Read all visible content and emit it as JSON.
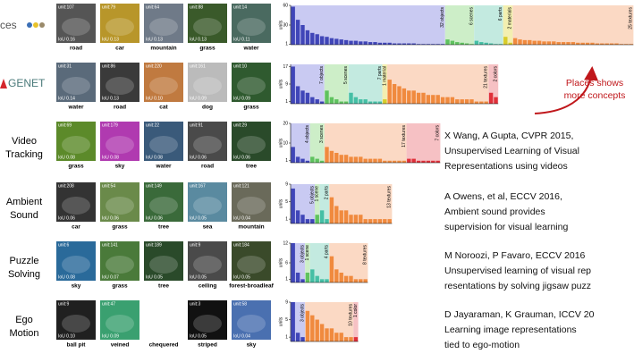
{
  "rows": [
    {
      "label": "ces",
      "images": [
        {
          "unit": "unit:107",
          "iou": "IoU 0.16",
          "label": "road"
        },
        {
          "unit": "unit:79",
          "iou": "IoU 0.13",
          "label": "car"
        },
        {
          "unit": "unit:64",
          "iou": "IoU 0.13",
          "label": "mountain"
        },
        {
          "unit": "unit:88",
          "iou": "IoU 0.13",
          "label": "grass"
        },
        {
          "unit": "unit:14",
          "iou": "IoU 0.11",
          "label": "water"
        }
      ],
      "chart": {
        "type": "bar",
        "ylabel": "units",
        "ylim": [
          0,
          60
        ],
        "yticks": [
          1,
          30,
          60
        ],
        "series": [
          {
            "label": "32 objects",
            "color": "#4046b8",
            "background": "#c9caf2",
            "values": [
              58,
              38,
              30,
              22,
              18,
              16,
              13,
              12,
              10,
              9,
              8,
              7,
              6,
              6,
              5,
              5,
              4,
              4,
              3,
              3,
              3,
              2,
              2,
              2,
              2,
              2,
              1,
              1,
              1,
              1,
              1,
              1
            ]
          },
          {
            "label": "6 scenes",
            "color": "#5fc25f",
            "background": "#cdeec8",
            "values": [
              8,
              6,
              4,
              3,
              2,
              1
            ]
          },
          {
            "label": "6 parts",
            "color": "#45bfa5",
            "background": "#c3eae0",
            "values": [
              6,
              4,
              3,
              2,
              1,
              1
            ]
          },
          {
            "label": "2 materials",
            "color": "#d8cc2a",
            "background": "#f3efb0",
            "values": [
              12,
              3
            ]
          },
          {
            "label": "25 textures",
            "color": "#f08a3e",
            "background": "#fbd9c4",
            "values": [
              10,
              8,
              7,
              7,
              6,
              6,
              5,
              5,
              5,
              4,
              4,
              4,
              4,
              3,
              3,
              3,
              3,
              2,
              2,
              2,
              2,
              2,
              1,
              1,
              1
            ]
          }
        ]
      }
    },
    {
      "label": "GENET",
      "images": [
        {
          "unit": "unit:31",
          "iou": "IoU 0.14",
          "label": "water"
        },
        {
          "unit": "unit:86",
          "iou": "IoU 0.13",
          "label": "road"
        },
        {
          "unit": "unit:220",
          "iou": "IoU 0.10",
          "label": "cat"
        },
        {
          "unit": "unit:161",
          "iou": "IoU 0.09",
          "label": "dog"
        },
        {
          "unit": "unit:10",
          "iou": "IoU 0.09",
          "label": "grass"
        }
      ],
      "chart": {
        "type": "bar",
        "ylabel": "units",
        "ylim": [
          0,
          18
        ],
        "yticks": [
          1,
          9,
          17
        ],
        "series": [
          {
            "label": "7 objects",
            "color": "#4046b8",
            "background": "#c9caf2",
            "values": [
              17,
              8,
              6,
              5,
              3,
              2,
              1
            ]
          },
          {
            "label": "5 scenes",
            "color": "#5fc25f",
            "background": "#cdeec8",
            "values": [
              6,
              3,
              2,
              1,
              1
            ]
          },
          {
            "label": "7 parts",
            "color": "#45bfa5",
            "background": "#c3eae0",
            "values": [
              5,
              3,
              2,
              2,
              1,
              1,
              1
            ]
          },
          {
            "label": "1 material",
            "color": "#d8cc2a",
            "background": "#f3efb0",
            "values": [
              2
            ]
          },
          {
            "label": "21 textures",
            "color": "#f08a3e",
            "background": "#fbd9c4",
            "values": [
              11,
              9,
              8,
              7,
              6,
              6,
              5,
              5,
              4,
              4,
              4,
              3,
              3,
              3,
              2,
              2,
              2,
              2,
              1,
              1,
              1
            ]
          },
          {
            "label": "2 colors",
            "color": "#e0303a",
            "background": "#f6c1c4",
            "values": [
              5,
              3
            ]
          }
        ]
      },
      "note": {
        "lines": [
          "Places shows",
          "more concepts"
        ]
      }
    },
    {
      "label": [
        "Video",
        "Tracking"
      ],
      "images": [
        {
          "unit": "unit:69",
          "iou": "IoU 0.08",
          "label": "grass"
        },
        {
          "unit": "unit:179",
          "iou": "IoU 0.08",
          "label": "sky"
        },
        {
          "unit": "unit:22",
          "iou": "IoU 0.08",
          "label": "water"
        },
        {
          "unit": "unit:91",
          "iou": "IoU 0.06",
          "label": "road"
        },
        {
          "unit": "unit:29",
          "iou": "IoU 0.06",
          "label": "tree"
        }
      ],
      "chart": {
        "type": "bar",
        "ylabel": "units",
        "ylim": [
          0,
          20
        ],
        "yticks": [
          1,
          10,
          20
        ],
        "series": [
          {
            "label": "4 objects",
            "color": "#4046b8",
            "background": "#c9caf2",
            "values": [
              8,
              3,
              2,
              1
            ]
          },
          {
            "label": "3 scenes",
            "color": "#5fc25f",
            "background": "#cdeec8",
            "values": [
              3,
              2,
              1
            ]
          },
          {
            "label": "17 textures",
            "color": "#f08a3e",
            "background": "#fbd9c4",
            "values": [
              8,
              6,
              5,
              4,
              4,
              3,
              3,
              3,
              2,
              2,
              2,
              2,
              1,
              1,
              1,
              1,
              1
            ]
          },
          {
            "label": "7 colors",
            "color": "#e0303a",
            "background": "#f6c1c4",
            "values": [
              2,
              2,
              1,
              1,
              1,
              1,
              1
            ]
          }
        ]
      },
      "note": {
        "lines": [
          "X Wang, A Gupta, CVPR 2015,",
          "Unsupervised Learning of Visual",
          "Representations using videos"
        ]
      }
    },
    {
      "label": [
        "Ambient",
        "Sound"
      ],
      "images": [
        {
          "unit": "unit:208",
          "iou": "IoU 0.06",
          "label": "car"
        },
        {
          "unit": "unit:54",
          "iou": "IoU 0.06",
          "label": "grass"
        },
        {
          "unit": "unit:149",
          "iou": "IoU 0.06",
          "label": "tree"
        },
        {
          "unit": "unit:167",
          "iou": "IoU 0.05",
          "label": "sea"
        },
        {
          "unit": "unit:121",
          "iou": "IoU 0.04",
          "label": "mountain"
        }
      ],
      "chart": {
        "type": "bar",
        "ylabel": "units",
        "ylim": [
          0,
          9
        ],
        "yticks": [
          1,
          5,
          9
        ],
        "series": [
          {
            "label": "5 objects",
            "color": "#4046b8",
            "background": "#c9caf2",
            "values": [
              8,
              3,
              2,
              1,
              1
            ]
          },
          {
            "label": "1 scene",
            "color": "#5fc25f",
            "background": "#cdeec8",
            "values": [
              2
            ]
          },
          {
            "label": "2 parts",
            "color": "#45bfa5",
            "background": "#c3eae0",
            "values": [
              3,
              1
            ]
          },
          {
            "label": "13 textures",
            "color": "#f08a3e",
            "background": "#fbd9c4",
            "values": [
              6,
              4,
              3,
              3,
              2,
              2,
              2,
              1,
              1,
              1,
              1,
              1,
              1
            ]
          }
        ]
      },
      "note": {
        "lines": [
          "A Owens, et al, ECCV 2016,",
          "Ambient sound provides",
          "supervision for visual learning"
        ]
      }
    },
    {
      "label": [
        "Puzzle",
        "Solving"
      ],
      "images": [
        {
          "unit": "unit:6",
          "iou": "IoU 0.08",
          "label": "sky"
        },
        {
          "unit": "unit:141",
          "iou": "IoU 0.07",
          "label": "grass"
        },
        {
          "unit": "unit:189",
          "iou": "IoU 0.05",
          "label": "tree"
        },
        {
          "unit": "unit:9",
          "iou": "IoU 0.05",
          "label": "ceiling"
        },
        {
          "unit": "unit:184",
          "iou": "IoU 0.05",
          "label": "forest-broadleaf"
        }
      ],
      "chart": {
        "type": "bar",
        "ylabel": "units",
        "ylim": [
          0,
          12
        ],
        "yticks": [
          1,
          6,
          12
        ],
        "series": [
          {
            "label": "3 objects",
            "color": "#4046b8",
            "background": "#c9caf2",
            "values": [
              12,
              3,
              1
            ]
          },
          {
            "label": "1 scene",
            "color": "#5fc25f",
            "background": "#cdeec8",
            "values": [
              3
            ]
          },
          {
            "label": "4 parts",
            "color": "#45bfa5",
            "background": "#c3eae0",
            "values": [
              4,
              2,
              1,
              1
            ]
          },
          {
            "label": "8 textures",
            "color": "#f08a3e",
            "background": "#fbd9c4",
            "values": [
              8,
              4,
              3,
              2,
              2,
              1,
              1,
              1
            ]
          }
        ]
      },
      "note": {
        "lines": [
          "M Noroozi, P Favaro, ECCV 2016",
          "Unsupervised learning of visual rep",
          "resentations by solving jigsaw puzz"
        ]
      }
    },
    {
      "label": [
        "Ego",
        "Motion"
      ],
      "images": [
        {
          "unit": "unit:9",
          "iou": "IoU 0.10",
          "label": "ball pit"
        },
        {
          "unit": "unit:47",
          "iou": "IoU 0.09",
          "label": "veined"
        },
        {
          "unit": "unit:5",
          "iou": "IoU 0.06",
          "label": "chequered"
        },
        {
          "unit": "unit:3",
          "iou": "IoU 0.05",
          "label": "striped"
        },
        {
          "unit": "unit:58",
          "iou": "IoU 0.04",
          "label": "sky"
        }
      ],
      "chart": {
        "type": "bar",
        "ylabel": "units",
        "ylim": [
          0,
          9
        ],
        "yticks": [
          1,
          5,
          9
        ],
        "series": [
          {
            "label": "3 objects",
            "color": "#4046b8",
            "background": "#c9caf2",
            "values": [
              9,
              2,
              1
            ]
          },
          {
            "label": "10 textures",
            "color": "#f08a3e",
            "background": "#fbd9c4",
            "values": [
              7,
              6,
              5,
              4,
              3,
              3,
              2,
              2,
              1,
              1
            ]
          },
          {
            "label": "1 color",
            "color": "#e0303a",
            "background": "#f6c1c4",
            "values": [
              1
            ]
          }
        ]
      },
      "note": {
        "lines": [
          "D Jayaraman, K Grauman, ICCV 20",
          "Learning image representations",
          "tied to ego-motion"
        ]
      }
    }
  ]
}
